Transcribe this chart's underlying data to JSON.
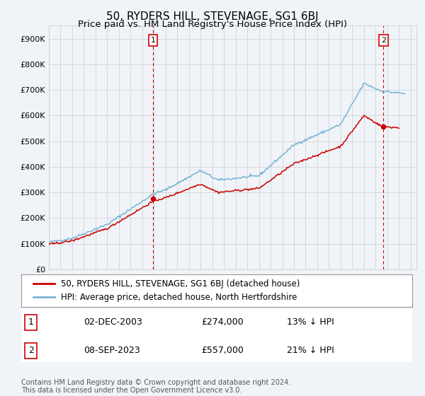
{
  "title": "50, RYDERS HILL, STEVENAGE, SG1 6BJ",
  "subtitle": "Price paid vs. HM Land Registry's House Price Index (HPI)",
  "ylabel_ticks": [
    "£0",
    "£100K",
    "£200K",
    "£300K",
    "£400K",
    "£500K",
    "£600K",
    "£700K",
    "£800K",
    "£900K"
  ],
  "ytick_values": [
    0,
    100000,
    200000,
    300000,
    400000,
    500000,
    600000,
    700000,
    800000,
    900000
  ],
  "ylim": [
    0,
    950000
  ],
  "xlim_start": 1995.0,
  "xlim_end": 2026.5,
  "sale1_x": 2003.92,
  "sale1_y": 274000,
  "sale2_x": 2023.67,
  "sale2_y": 557000,
  "red_line_color": "#cc0000",
  "blue_line_color": "#7ab3d4",
  "marker_color_sale": "#cc0000",
  "vline_color": "#cc0000",
  "grid_color": "#cccccc",
  "background_color": "#f0f4f8",
  "legend_label_red": "50, RYDERS HILL, STEVENAGE, SG1 6BJ (detached house)",
  "legend_label_blue": "HPI: Average price, detached house, North Hertfordshire",
  "ann1_date": "02-DEC-2003",
  "ann1_price": "£274,000",
  "ann1_hpi": "13% ↓ HPI",
  "ann2_date": "08-SEP-2023",
  "ann2_price": "£557,000",
  "ann2_hpi": "21% ↓ HPI",
  "footer": "Contains HM Land Registry data © Crown copyright and database right 2024.\nThis data is licensed under the Open Government Licence v3.0.",
  "title_fontsize": 11,
  "subtitle_fontsize": 9.5,
  "tick_fontsize": 8,
  "legend_fontsize": 8.5,
  "ann_fontsize": 9,
  "footer_fontsize": 7
}
